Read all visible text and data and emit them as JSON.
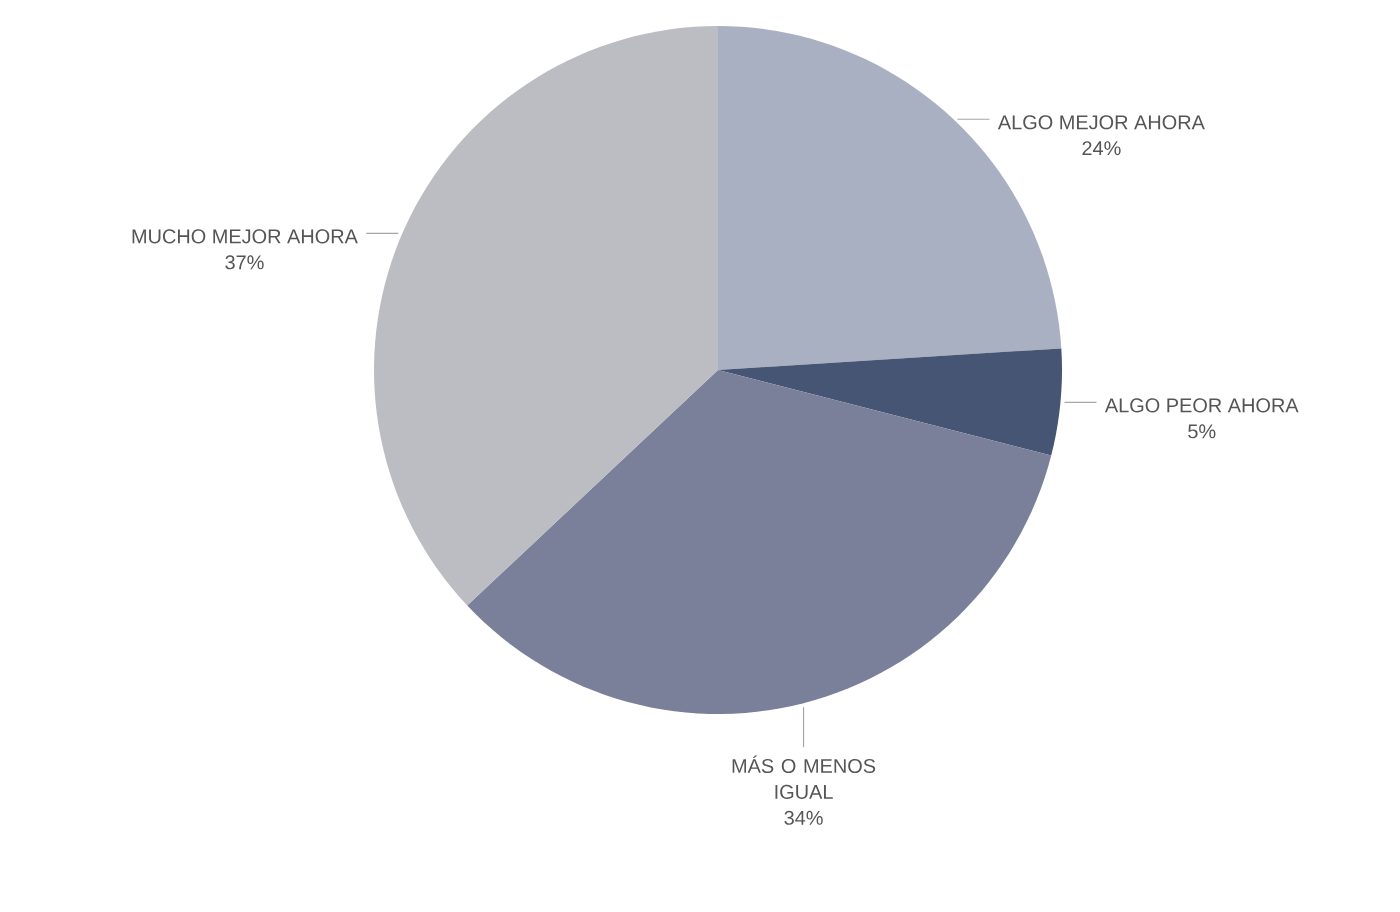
{
  "chart_data": {
    "type": "pie",
    "categories": [
      "ALGO MEJOR AHORA",
      "ALGO PEOR AHORA",
      "MÁS O MENOS IGUAL",
      "MUCHO MEJOR AHORA"
    ],
    "values": [
      24,
      5,
      34,
      37
    ],
    "value_labels": [
      "24%",
      "5%",
      "34%",
      "37%"
    ],
    "colors": [
      "#a9b0c2",
      "#465574",
      "#7a8099",
      "#bcbdc2"
    ]
  }
}
